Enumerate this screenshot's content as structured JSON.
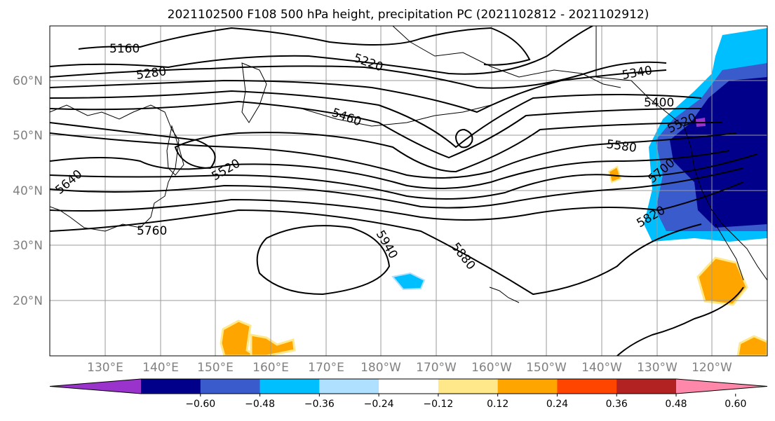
{
  "title": "2021102500 F108 500 hPa height, precipitation PC (2021102812 - 2021102912)",
  "lat_labels": [
    "60°N",
    "50°N",
    "40°N",
    "30°N",
    "20°N"
  ],
  "lon_labels": [
    "130°E",
    "140°E",
    "150°E",
    "160°E",
    "170°E",
    "180°W",
    "170°W",
    "160°W",
    "150°W",
    "140°W",
    "130°W",
    "120°W"
  ],
  "contour_labels": [
    "5160",
    "5280",
    "5220",
    "5340",
    "5400",
    "5460",
    "5520",
    "5580",
    "5640",
    "5700",
    "5760",
    "5820",
    "5880",
    "5940",
    "5520"
  ],
  "colorbar": {
    "colors": [
      "#9933cc",
      "#00008b",
      "#3a5bcc",
      "#00bfff",
      "#afe0ff",
      "#ffffff",
      "#ffe88a",
      "#ffa500",
      "#ff4500",
      "#b22222",
      "#ff88aa"
    ],
    "tick_labels": [
      "−0.60",
      "−0.48",
      "−0.36",
      "−0.24",
      "−0.12",
      "0.12",
      "0.24",
      "0.36",
      "0.48",
      "0.60"
    ]
  },
  "chart_data": {
    "type": "map",
    "title": "2021102500 F108 500 hPa height, precipitation PC (2021102812 - 2021102912)",
    "lat_range": [
      10,
      70
    ],
    "lon_range": [
      120,
      250
    ],
    "contour_levels": [
      5160,
      5220,
      5280,
      5340,
      5400,
      5460,
      5520,
      5580,
      5640,
      5700,
      5760,
      5820,
      5880,
      5940
    ],
    "colorbar_levels": [
      -0.6,
      -0.48,
      -0.36,
      -0.24,
      -0.12,
      0.12,
      0.24,
      0.36,
      0.48,
      0.6
    ],
    "grid": true
  }
}
